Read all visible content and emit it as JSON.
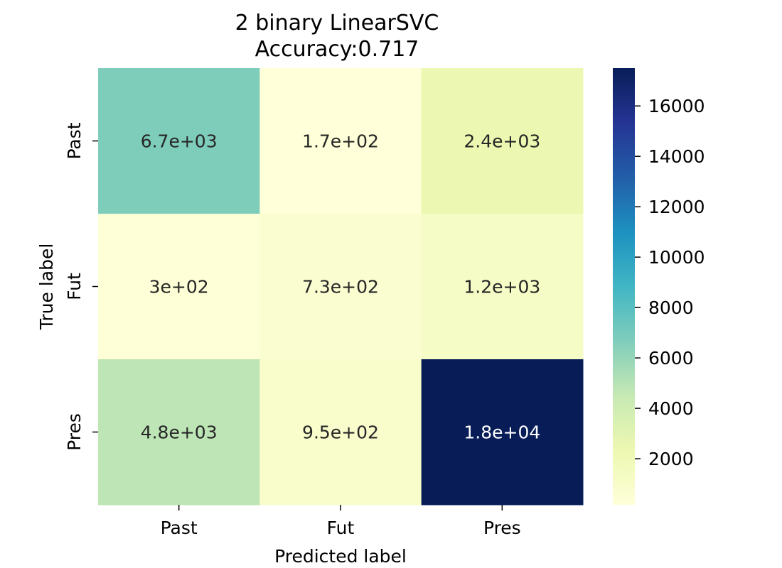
{
  "chart_data": {
    "type": "heatmap",
    "title": "2 binary LinearSVC\nAccuracy:0.717",
    "xlabel": "Predicted label",
    "ylabel": "True label",
    "x_categories": [
      "Past",
      "Fut",
      "Pres"
    ],
    "y_categories": [
      "Past",
      "Fut",
      "Pres"
    ],
    "values": [
      [
        6700,
        170,
        2400
      ],
      [
        300,
        730,
        1200
      ],
      [
        4800,
        950,
        18000
      ]
    ],
    "annotations": [
      [
        "6.7e+03",
        "1.7e+02",
        "2.4e+03"
      ],
      [
        "3e+02",
        "7.3e+02",
        "1.2e+03"
      ],
      [
        "4.8e+03",
        "9.5e+02",
        "1.8e+04"
      ]
    ],
    "colormap": "YlGnBu",
    "colorbar": {
      "range": [
        170,
        17500
      ],
      "ticks": [
        2000,
        4000,
        6000,
        8000,
        10000,
        12000,
        14000,
        16000
      ]
    },
    "annotation_colors": {
      "dark": "#262626",
      "light": "#ffffff"
    }
  }
}
